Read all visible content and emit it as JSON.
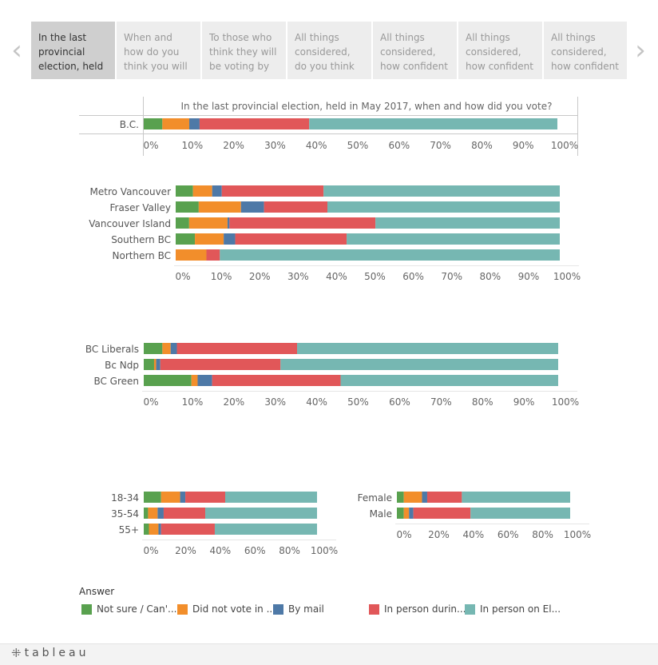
{
  "tabs": [
    {
      "label": "In the last provincial election, held",
      "active": true
    },
    {
      "label": "When and how do you think you will be",
      "active": false
    },
    {
      "label": "To those who think they will be voting by",
      "active": false
    },
    {
      "label": "All things considered, do you think",
      "active": false
    },
    {
      "label": "All things considered, how confident",
      "active": false
    },
    {
      "label": "All things considered, how confident",
      "active": false
    },
    {
      "label": "All things considered, how confident",
      "active": false
    }
  ],
  "nav": {
    "prev_glyph": "‹",
    "next_glyph": "›"
  },
  "legend": {
    "title": "Answer",
    "items": [
      {
        "label": "Not sure / Can'...",
        "color": "#59a14f"
      },
      {
        "label": "Did not vote in ...",
        "color": "#f28e2b"
      },
      {
        "label": "By mail",
        "color": "#4e79a7"
      },
      {
        "label": "In person durin...",
        "color": "#e15759"
      },
      {
        "label": "In person on El...",
        "color": "#76b7b2"
      }
    ]
  },
  "footer": {
    "logo_mark": "⁜",
    "logo_text": "tableau"
  },
  "chart_data": [
    {
      "type": "bar",
      "orientation": "horizontal",
      "stacked": true,
      "title": "In the last provincial election, held in May 2017, when and how did you vote?",
      "categories": [
        "B.C."
      ],
      "series": [
        {
          "name": "Not sure / Can't remember",
          "values": [
            4.5
          ]
        },
        {
          "name": "Did not vote in this election",
          "values": [
            6.5
          ]
        },
        {
          "name": "By mail",
          "values": [
            2.5
          ]
        },
        {
          "name": "In person during advance voting",
          "values": [
            26.5
          ]
        },
        {
          "name": "In person on Election Day",
          "values": [
            60.0
          ]
        }
      ],
      "xlim": [
        0,
        100
      ],
      "ticks": [
        "0%",
        "10%",
        "20%",
        "30%",
        "40%",
        "50%",
        "60%",
        "70%",
        "80%",
        "90%",
        "100%"
      ]
    },
    {
      "type": "bar",
      "orientation": "horizontal",
      "stacked": true,
      "categories": [
        "Metro Vancouver",
        "Fraser Valley",
        "Vancouver Island",
        "Southern BC",
        "Northern BC"
      ],
      "series": [
        {
          "name": "Not sure / Can't remember",
          "values": [
            4.5,
            6.0,
            3.5,
            5.0,
            0.0
          ]
        },
        {
          "name": "Did not vote in this election",
          "values": [
            5.0,
            11.0,
            10.0,
            7.5,
            8.0
          ]
        },
        {
          "name": "By mail",
          "values": [
            2.5,
            6.0,
            0.5,
            3.0,
            0.0
          ]
        },
        {
          "name": "In person during advance voting",
          "values": [
            26.5,
            16.5,
            38.0,
            29.0,
            3.5
          ]
        },
        {
          "name": "In person on Election Day",
          "values": [
            61.5,
            60.5,
            48.0,
            55.5,
            88.5
          ]
        }
      ],
      "xlim": [
        0,
        100
      ],
      "ticks": [
        "0%",
        "10%",
        "20%",
        "30%",
        "40%",
        "50%",
        "60%",
        "70%",
        "80%",
        "90%",
        "100%"
      ]
    },
    {
      "type": "bar",
      "orientation": "horizontal",
      "stacked": true,
      "categories": [
        "BC Liberals",
        "Bc Ndp",
        "BC Green"
      ],
      "series": [
        {
          "name": "Not sure / Can't remember",
          "values": [
            4.5,
            2.5,
            11.5
          ]
        },
        {
          "name": "Did not vote in this election",
          "values": [
            2.0,
            0.5,
            1.5
          ]
        },
        {
          "name": "By mail",
          "values": [
            1.5,
            1.0,
            3.5
          ]
        },
        {
          "name": "In person during advance voting",
          "values": [
            29.0,
            29.0,
            31.0
          ]
        },
        {
          "name": "In person on Election Day",
          "values": [
            63.0,
            67.0,
            52.5
          ]
        }
      ],
      "xlim": [
        0,
        100
      ],
      "ticks": [
        "0%",
        "10%",
        "20%",
        "30%",
        "40%",
        "50%",
        "60%",
        "70%",
        "80%",
        "90%",
        "100%"
      ]
    },
    {
      "type": "bar",
      "orientation": "horizontal",
      "stacked": true,
      "categories": [
        "18-34",
        "35-54",
        "55+"
      ],
      "series": [
        {
          "name": "Not sure / Can't remember",
          "values": [
            10.0,
            2.5,
            3.0
          ]
        },
        {
          "name": "Did not vote in this election",
          "values": [
            11.0,
            5.5,
            5.5
          ]
        },
        {
          "name": "By mail",
          "values": [
            3.0,
            3.5,
            1.5
          ]
        },
        {
          "name": "In person during advance voting",
          "values": [
            23.0,
            24.0,
            31.0
          ]
        },
        {
          "name": "In person on Election Day",
          "values": [
            53.0,
            64.5,
            59.0
          ]
        }
      ],
      "xlim": [
        0,
        100
      ],
      "ticks": [
        "0%",
        "20%",
        "40%",
        "60%",
        "80%",
        "100%"
      ]
    },
    {
      "type": "bar",
      "orientation": "horizontal",
      "stacked": true,
      "categories": [
        "Female",
        "Male"
      ],
      "series": [
        {
          "name": "Not sure / Can't remember",
          "values": [
            4.0,
            4.0
          ]
        },
        {
          "name": "Did not vote in this election",
          "values": [
            10.5,
            3.0
          ]
        },
        {
          "name": "By mail",
          "values": [
            3.0,
            2.5
          ]
        },
        {
          "name": "In person during advance voting",
          "values": [
            20.0,
            33.0
          ]
        },
        {
          "name": "In person on Election Day",
          "values": [
            62.5,
            57.5
          ]
        }
      ],
      "xlim": [
        0,
        100
      ],
      "ticks": [
        "0%",
        "20%",
        "40%",
        "60%",
        "80%",
        "100%"
      ]
    }
  ]
}
